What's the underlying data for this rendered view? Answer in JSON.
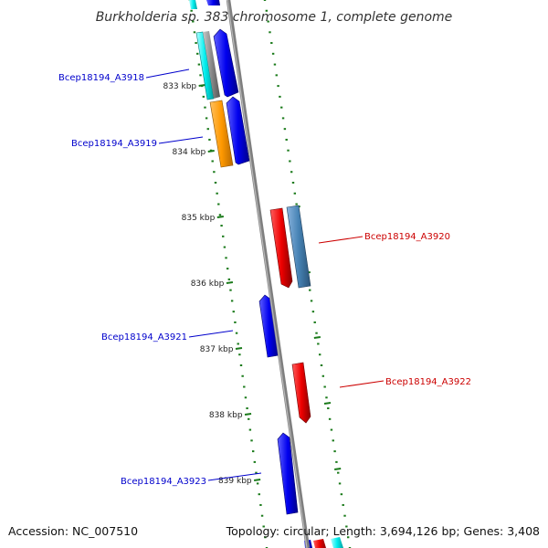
{
  "title": "Burkholderia sp. 383 chromosome 1, complete genome",
  "footer": {
    "accession": "Accession: NC_007510",
    "topology": "Topology: circular; Length: 3,694,126 bp; Genes: 3,408"
  },
  "scale_ticks": [
    "833 kbp",
    "834 kbp",
    "835 kbp",
    "836 kbp",
    "837 kbp",
    "838 kbp",
    "839 kbp"
  ],
  "gene_labels": {
    "g3918": "Bcep18194_A3918",
    "g3919": "Bcep18194_A3919",
    "g3920": "Bcep18194_A3920",
    "g3921": "Bcep18194_A3921",
    "g3922": "Bcep18194_A3922",
    "g3923": "Bcep18194_A3923"
  },
  "colors": {
    "forward_gene": "#0000ee",
    "reverse_gene": "#ee0000",
    "orange_feature": "#ff9900",
    "steelblue_feature": "#4682b4",
    "cyan_feature": "#00eeee",
    "backbone": "#808080",
    "tick_mark": "#1a7a1a",
    "forward_label": "#0000cc",
    "reverse_label": "#cc0000"
  }
}
